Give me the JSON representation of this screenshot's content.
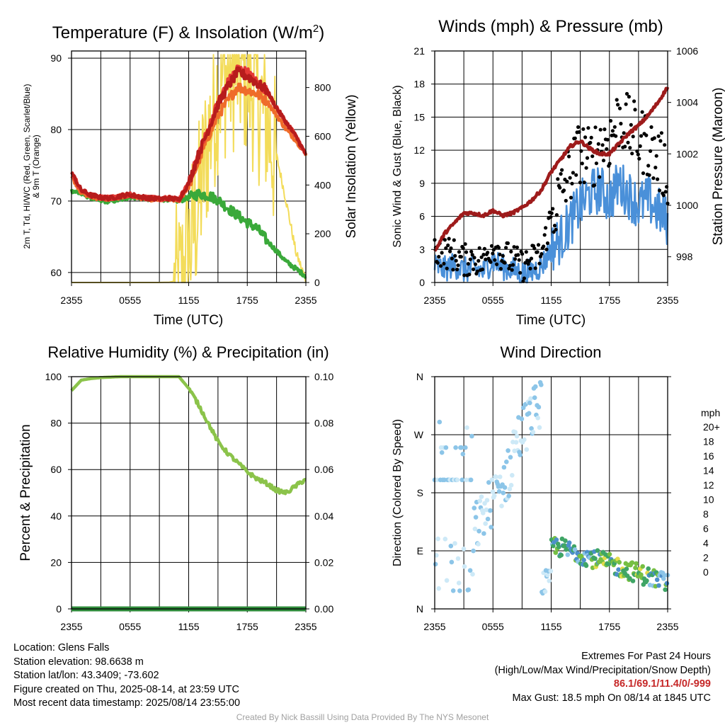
{
  "x_ticks": [
    "2355",
    "0555",
    "1155",
    "1755",
    "2355"
  ],
  "chart_data": [
    {
      "id": "temperature",
      "type": "line",
      "title": "Temperature (F) & Insolation (W/m²)",
      "xlabel": "Time (UTC)",
      "ylabel_left": "2m T, Td, HI/WC (Red, Green, Scarlet/Blue) & 9m T (Orange)",
      "ylabel_right": "Solar Insolation (Yellow)",
      "ylim_left": [
        58.6,
        91
      ],
      "ylim_right": [
        0,
        950
      ],
      "yticks_left": [
        60,
        70,
        80,
        90
      ],
      "yticks_right": [
        0,
        200,
        400,
        600,
        800
      ],
      "hours": [
        0,
        1,
        2,
        3,
        4,
        5,
        6,
        7,
        8,
        9,
        10,
        11,
        12,
        13,
        14,
        15,
        16,
        17,
        18,
        19,
        20,
        21,
        22,
        23,
        24
      ],
      "series": [
        {
          "role": "2m T",
          "color": "#b71c1c",
          "axis": "left",
          "values": [
            74,
            71.5,
            70.8,
            70.5,
            70.4,
            70.7,
            70.9,
            70.6,
            70.4,
            70.3,
            70.4,
            70.2,
            72.5,
            76.5,
            80,
            83.5,
            86,
            88,
            87.5,
            86.5,
            85.5,
            83,
            81,
            79,
            76.5
          ]
        },
        {
          "role": "9m T",
          "color": "#ef6c2a",
          "axis": "left",
          "values": [
            73.5,
            71.2,
            70.6,
            70.4,
            70.3,
            70.6,
            70.8,
            70.5,
            70.3,
            70.2,
            70.3,
            70.1,
            72,
            75.5,
            79,
            82,
            84,
            86,
            85.5,
            85,
            84,
            82,
            80,
            78.5,
            76.5
          ]
        },
        {
          "role": "HI/WC",
          "color": "#e53935",
          "axis": "left",
          "values": [
            74,
            71.5,
            70.8,
            70.5,
            70.4,
            70.7,
            70.9,
            70.6,
            70.4,
            70.3,
            70.4,
            70.2,
            72.5,
            76.5,
            80,
            83.8,
            86.5,
            88.5,
            88,
            86.5,
            85.5,
            83,
            81,
            79,
            76.5
          ]
        },
        {
          "role": "Td",
          "color": "#3aa93a",
          "axis": "left",
          "values": [
            71.5,
            71,
            70.5,
            70,
            70,
            70.2,
            70.6,
            70.5,
            70.3,
            70.2,
            70.3,
            70,
            70.5,
            71,
            70.8,
            70.2,
            69,
            68,
            67,
            66.2,
            64.5,
            63,
            61.5,
            60.5,
            59.5
          ]
        },
        {
          "role": "Insolation",
          "color": "#f3dc5a",
          "axis": "right",
          "values": [
            0,
            0,
            0,
            0,
            0,
            0,
            0,
            0,
            0,
            0,
            1,
            10,
            160,
            350,
            620,
            830,
            900,
            920,
            880,
            800,
            700,
            520,
            330,
            120,
            12
          ]
        }
      ]
    },
    {
      "id": "winds",
      "type": "line",
      "title": "Winds (mph) & Pressure (mb)",
      "xlabel": "Time (UTC)",
      "ylabel_left": "Sonic Wind & Gust (Blue, Black)",
      "ylabel_right": "Station Pressure (Maroon)",
      "ylim_left": [
        0,
        21
      ],
      "ylim_right": [
        997,
        1006
      ],
      "yticks_left": [
        0,
        3,
        6,
        9,
        12,
        15,
        18,
        21
      ],
      "yticks_right": [
        998,
        1000,
        1002,
        1004,
        1006
      ],
      "hours": [
        0,
        1,
        2,
        3,
        4,
        5,
        6,
        7,
        8,
        9,
        10,
        11,
        12,
        13,
        14,
        15,
        16,
        17,
        18,
        19,
        20,
        21,
        22,
        23,
        24
      ],
      "series": [
        {
          "role": "Sonic Wind",
          "color": "#4a90d9",
          "axis": "left",
          "values": [
            1.5,
            1.2,
            1.6,
            1.1,
            1.3,
            1.0,
            2.0,
            1.4,
            1.2,
            0.8,
            1.0,
            1.5,
            3.0,
            4.0,
            5.5,
            7.0,
            8.0,
            8.5,
            7.5,
            9.0,
            8.0,
            7.0,
            7.5,
            6.5,
            5.5
          ]
        },
        {
          "role": "Gust",
          "color": "#000000",
          "axis": "left",
          "values": [
            3.0,
            2.8,
            2.5,
            2.0,
            2.2,
            1.8,
            3.5,
            2.5,
            2.0,
            1.5,
            2.0,
            2.5,
            6.0,
            8.0,
            10.0,
            12.0,
            11.0,
            12.5,
            13.0,
            15.0,
            14.0,
            13.0,
            12.5,
            11.0,
            10.0
          ]
        },
        {
          "role": "Station Pressure",
          "color": "#9e1b1b",
          "axis": "right",
          "values": [
            998.2,
            998.9,
            999.3,
            999.7,
            999.7,
            999.6,
            999.8,
            999.6,
            999.7,
            999.9,
            1000.2,
            1000.6,
            1001.3,
            1001.8,
            1002.3,
            1002.5,
            1002.2,
            1002.0,
            1002.0,
            1002.4,
            1002.8,
            1003.1,
            1003.5,
            1004.0,
            1004.6
          ]
        }
      ]
    },
    {
      "id": "humidity",
      "type": "line",
      "title": "Relative Humidity (%) & Precipitation (in)",
      "xlabel": "",
      "ylabel_left": "Percent & Precipitation",
      "ylabel_right": "",
      "ylim_left": [
        0,
        100
      ],
      "ylim_right": [
        0,
        0.1
      ],
      "yticks_left": [
        0,
        20,
        40,
        60,
        80,
        100
      ],
      "yticks_right": [
        "0.00",
        "0.02",
        "0.04",
        "0.06",
        "0.08",
        "0.10"
      ],
      "hours": [
        0,
        1,
        2,
        3,
        4,
        5,
        6,
        7,
        8,
        9,
        10,
        11,
        12,
        13,
        14,
        15,
        16,
        17,
        18,
        19,
        20,
        21,
        22,
        23,
        24
      ],
      "series": [
        {
          "role": "Relative Humidity",
          "color": "#8bc34a",
          "axis": "left",
          "values": [
            94,
            98.5,
            99.2,
            99.6,
            99.8,
            100,
            100,
            100,
            100,
            100,
            100,
            100,
            95,
            88,
            80,
            72,
            67,
            63,
            59,
            56,
            54,
            51,
            50,
            53,
            56
          ]
        },
        {
          "role": "Precipitation",
          "color": "#2e8b3a",
          "axis": "right",
          "values": [
            0,
            0,
            0,
            0,
            0,
            0,
            0,
            0,
            0,
            0,
            0,
            0,
            0,
            0,
            0,
            0,
            0,
            0,
            0,
            0,
            0,
            0,
            0,
            0,
            0
          ]
        }
      ]
    },
    {
      "id": "direction",
      "type": "scatter",
      "title": "Wind Direction",
      "ylabel": "Direction (Colored By Speed)",
      "yticks": [
        "N",
        "E",
        "S",
        "W",
        "N"
      ],
      "ylim": [
        0,
        360
      ],
      "colorbar_unit": "mph",
      "colorbar_labels": [
        "0",
        "2",
        "4",
        "6",
        "8",
        "10",
        "12",
        "14",
        "16",
        "18",
        "20+"
      ],
      "colorbar_colors": [
        "#cde9f7",
        "#8cc5e8",
        "#4d8fcb",
        "#3fa566",
        "#76bf43",
        "#e3dc4b",
        "#f7ad40",
        "#f06329",
        "#dd2c28",
        "#b81c24",
        "#8b1418"
      ]
    }
  ],
  "footer": {
    "location": "Location: Glens Falls",
    "elevation": "Station elevation: 98.6638 m",
    "latlon": "Station lat/lon: 43.3409; -73.602",
    "created": "Figure created on Thu, 2025-08-14, at 23:59 UTC",
    "recent": "Most recent data timestamp: 2025/08/14 23:55:00",
    "extremes_title": "Extremes For Past 24 Hours",
    "extremes_legend": "(High/Low/Max Wind/Precipitation/Snow Depth)",
    "extremes_values": "86.1/69.1/11.4/0/-999",
    "max_gust": "Max Gust: 18.5 mph On 08/14 at 1845 UTC",
    "credit": "Created By Nick Bassill Using Data Provided By The NYS Mesonet"
  }
}
